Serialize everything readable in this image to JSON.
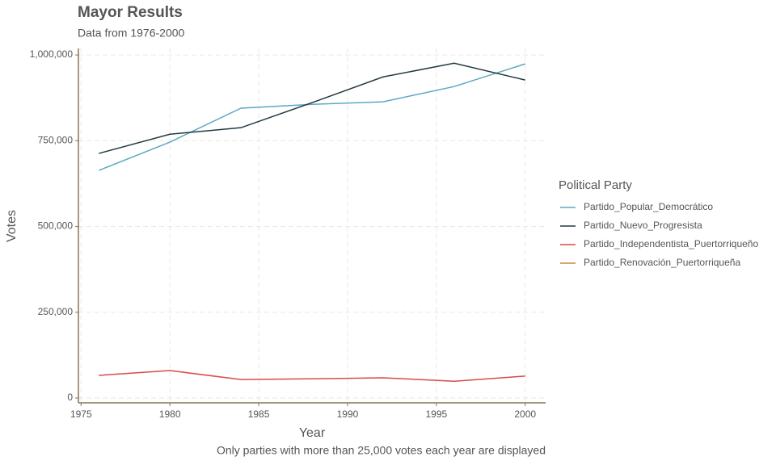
{
  "chart_data": {
    "type": "line",
    "title": "Mayor Results",
    "subtitle": "Data from 1976-2000",
    "x_label": "Year",
    "y_label": "Votes",
    "caption": "Only parties with more than 25,000 votes each year are displayed",
    "legend_title": "Political Party",
    "legend": "right",
    "grid": true,
    "x": [
      1976,
      1980,
      1984,
      1988,
      1992,
      1996,
      2000
    ],
    "series": [
      {
        "name": "Partido_Popular_Democrático",
        "color": "#5ba8c2",
        "values": [
          663500,
          746000,
          845000,
          856000,
          863500,
          908000,
          974000
        ]
      },
      {
        "name": "Partido_Nuevo_Progresista",
        "color": "#233a40",
        "values": [
          713000,
          769000,
          788000,
          861000,
          936000,
          976000,
          927000
        ]
      },
      {
        "name": "Partido_Independentista_Puertorriqueño",
        "color": "#d94a4a",
        "values": [
          66000,
          80000,
          54000,
          56000,
          59000,
          49000,
          64000
        ]
      },
      {
        "name": "Partido_Renovación_Puertorriqueña",
        "color": "#c0874a",
        "values": [
          null,
          null,
          null,
          null,
          null,
          null,
          null
        ]
      }
    ],
    "xlim": [
      1974.85,
      2001.15
    ],
    "xticks": [
      1975,
      1980,
      1985,
      1990,
      1995,
      2000
    ],
    "ylim": [
      -14000,
      1019000
    ],
    "yticks": [
      0,
      {
        "value": 250000,
        "label": "250,000"
      },
      {
        "value": 500000,
        "label": "500,000"
      },
      {
        "value": 750000,
        "label": "750,000"
      },
      {
        "value": 1000000,
        "label": "1,000,000"
      }
    ]
  }
}
